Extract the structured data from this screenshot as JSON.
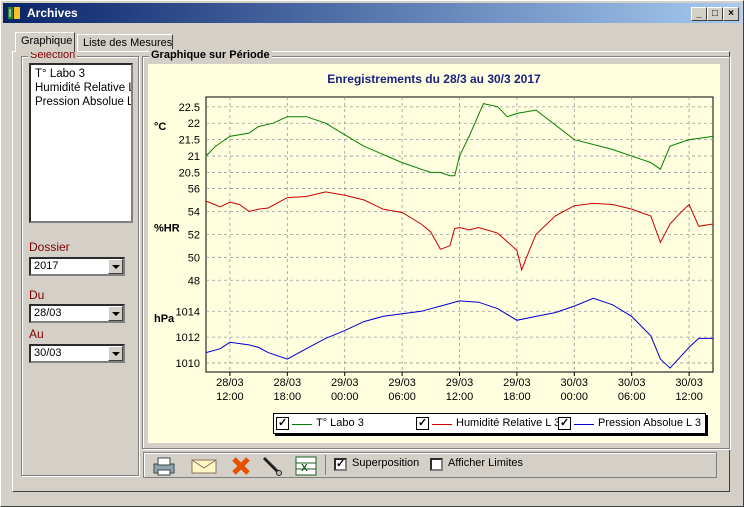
{
  "window": {
    "title": "Archives"
  },
  "tabs": [
    {
      "label": "Graphique"
    },
    {
      "label": "Liste des Mesures"
    }
  ],
  "selection": {
    "label": "Selection",
    "items": [
      "T° Labo 3",
      "Humidité Relative L 3",
      "Pression Absolue L 3"
    ]
  },
  "dossier": {
    "label": "Dossier",
    "value": "2017"
  },
  "du": {
    "label": "Du",
    "value": "28/03"
  },
  "au": {
    "label": "Au",
    "value": "30/03"
  },
  "graph_group": {
    "label": "Graphique sur Période"
  },
  "toolbar": {
    "superposition_label": "Superposition",
    "superposition_checked": true,
    "afficher_limites_label": "Afficher Limites",
    "afficher_limites_checked": false,
    "icons": [
      "printer-icon",
      "mail-icon",
      "delete-icon",
      "probe-icon",
      "excel-icon"
    ]
  },
  "chart_data": {
    "type": "line",
    "title": "Enregistrements du 28/3 au 30/3 2017",
    "x_ticks": [
      {
        "top": "28/03",
        "bottom": "12:00"
      },
      {
        "top": "28/03",
        "bottom": "18:00"
      },
      {
        "top": "29/03",
        "bottom": "00:00"
      },
      {
        "top": "29/03",
        "bottom": "06:00"
      },
      {
        "top": "29/03",
        "bottom": "12:00"
      },
      {
        "top": "29/03",
        "bottom": "18:00"
      },
      {
        "top": "30/03",
        "bottom": "00:00"
      },
      {
        "top": "30/03",
        "bottom": "06:00"
      },
      {
        "top": "30/03",
        "bottom": "12:00"
      }
    ],
    "grid": true,
    "panels": [
      {
        "unit": "°C",
        "yticks": [
          "22.5",
          "22",
          "21.5",
          "21",
          "20.5"
        ],
        "ylim": [
          20.3,
          22.8
        ],
        "series_index": 0
      },
      {
        "unit": "%HR",
        "yticks": [
          "56",
          "54",
          "52",
          "50",
          "48"
        ],
        "ylim": [
          47.5,
          56.3
        ],
        "series_index": 1
      },
      {
        "unit": "hPa",
        "yticks": [
          "1014",
          "1012",
          "1010"
        ],
        "ylim": [
          1009.3,
          1015.8
        ],
        "series_index": 2
      }
    ],
    "series": [
      {
        "name": "T° Labo 3",
        "color": "#008000",
        "x": [
          9.5,
          10.5,
          12,
          14,
          15,
          16.5,
          18,
          20,
          22,
          26,
          30,
          32,
          33,
          34,
          35,
          35.5,
          36,
          37,
          38.5,
          40,
          41,
          42,
          44,
          48,
          52,
          55,
          56,
          57,
          58,
          59,
          60,
          62.5
        ],
        "y": [
          21.0,
          21.3,
          21.6,
          21.7,
          21.9,
          22.0,
          22.2,
          22.2,
          22.0,
          21.3,
          20.8,
          20.6,
          20.5,
          20.5,
          20.4,
          20.4,
          21.0,
          21.6,
          22.6,
          22.5,
          22.2,
          22.3,
          22.4,
          21.5,
          21.2,
          20.9,
          20.8,
          20.6,
          21.3,
          21.4,
          21.5,
          21.6
        ]
      },
      {
        "name": "Humidité Relative L 3",
        "color": "#cc0000",
        "x": [
          9.5,
          11,
          12,
          13,
          14,
          15,
          16,
          18,
          20,
          22,
          24,
          26,
          28,
          30,
          32,
          33,
          34,
          35,
          35.5,
          36,
          37,
          38,
          40,
          42,
          42.5,
          43,
          44,
          46,
          48,
          50,
          52,
          54,
          56,
          57,
          58,
          59,
          60,
          61,
          62.5
        ],
        "y": [
          54.9,
          54.4,
          54.8,
          54.6,
          54.0,
          54.2,
          54.3,
          55.2,
          55.3,
          55.7,
          55.4,
          55.0,
          54.2,
          53.9,
          52.9,
          52.2,
          50.7,
          51.0,
          52.5,
          52.6,
          52.4,
          52.6,
          52.1,
          50.6,
          48.9,
          50.0,
          52.0,
          53.6,
          54.5,
          54.7,
          54.6,
          54.2,
          53.6,
          51.3,
          52.9,
          53.8,
          54.6,
          52.7,
          52.9
        ]
      },
      {
        "name": "Pression Absolue L 3",
        "color": "#0000cc",
        "x": [
          9.5,
          11,
          12,
          14,
          15,
          16,
          18,
          20,
          22,
          24,
          26,
          28,
          30,
          32,
          34,
          36,
          38,
          40,
          42,
          44,
          46,
          48,
          50,
          52,
          54,
          56,
          57,
          58,
          59,
          60,
          61,
          62.5
        ],
        "y": [
          1010.8,
          1011.1,
          1011.6,
          1011.4,
          1011.2,
          1010.8,
          1010.3,
          1011.1,
          1011.9,
          1012.5,
          1013.2,
          1013.6,
          1013.8,
          1014.0,
          1014.4,
          1014.8,
          1014.7,
          1014.2,
          1013.3,
          1013.6,
          1013.9,
          1014.4,
          1015.0,
          1014.5,
          1013.6,
          1012.1,
          1010.3,
          1009.6,
          1010.4,
          1011.2,
          1011.9,
          1011.9
        ]
      }
    ]
  }
}
